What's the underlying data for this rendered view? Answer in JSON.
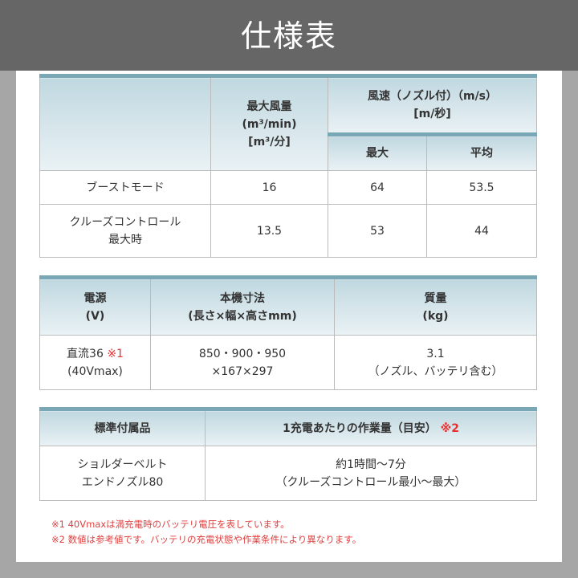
{
  "title": "仕様表",
  "table1": {
    "header": {
      "flow": [
        "最大風量",
        "(m³/min)",
        "[m³/分]"
      ],
      "speed": [
        "風速（ノズル付）（m/s）",
        "[m/秒]"
      ],
      "max": "最大",
      "avg": "平均"
    },
    "rows": [
      {
        "mode": [
          "ブーストモード"
        ],
        "flow": "16",
        "max": "64",
        "avg": "53.5"
      },
      {
        "mode": [
          "クルーズコントロール",
          "最大時"
        ],
        "flow": "13.5",
        "max": "53",
        "avg": "44"
      }
    ]
  },
  "table2": {
    "header": {
      "power": [
        "電源",
        "(V)"
      ],
      "size": [
        "本機寸法",
        "(長さ×幅×高さmm)"
      ],
      "mass": [
        "質量",
        "(kg)"
      ]
    },
    "row": {
      "power": [
        "直流36",
        "(40Vmax)"
      ],
      "power_note": "※1",
      "size": [
        "850・900・950",
        "×167×297"
      ],
      "mass": [
        "3.1",
        "（ノズル、バッテリ含む）"
      ]
    }
  },
  "table3": {
    "header": {
      "acc": "標準付属品",
      "work": "1充電あたりの作業量（目安）",
      "work_note": "※2"
    },
    "row": {
      "acc": [
        "ショルダーベルト",
        "エンドノズル80"
      ],
      "work": [
        "約1時間～7分",
        "（クルーズコントロール最小～最大）"
      ]
    }
  },
  "notes": [
    "※1 40Vmaxは満充電時のバッテリ電圧を表しています。",
    "※2 数値は参考値です。バッテリの充電状態や作業条件により異なります。"
  ],
  "colors": {
    "header_bg": "#666666",
    "accent": "#7aa7b5",
    "note": "#e04040"
  }
}
